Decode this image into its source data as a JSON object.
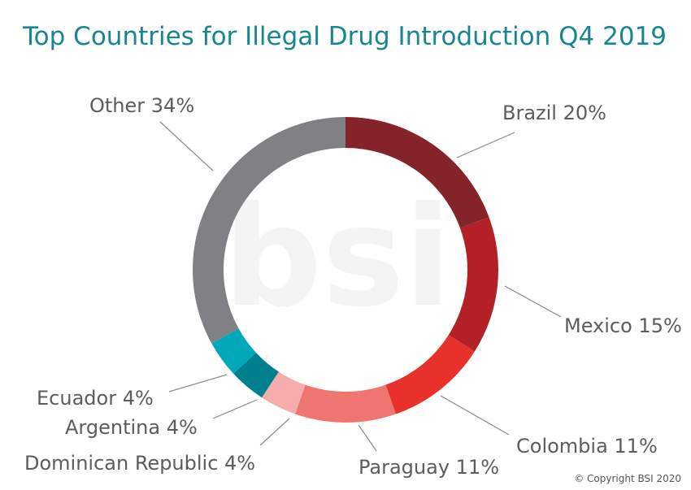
{
  "watermark": "bsi",
  "copyright": "© Copyright BSI 2020",
  "chart_data": {
    "type": "pie",
    "donut": true,
    "title": "Top Countries for Illegal Drug Introduction Q4 2019",
    "slices": [
      {
        "label": "Brazil 20%",
        "value": 20,
        "color": "#84232a"
      },
      {
        "label": "Mexico 15%",
        "value": 15,
        "color": "#b32028"
      },
      {
        "label": "Colombia 11%",
        "value": 11,
        "color": "#e8312b"
      },
      {
        "label": "Paraguay 11%",
        "value": 11,
        "color": "#ef7570"
      },
      {
        "label": "Dominican Republic 4%",
        "value": 4,
        "color": "#f7acad"
      },
      {
        "label": "Argentina 4%",
        "value": 4,
        "color": "#007f8c"
      },
      {
        "label": "Ecuador 4%",
        "value": 4,
        "color": "#00a8b8"
      },
      {
        "label": "Other 34%",
        "value": 34,
        "color": "#808184"
      }
    ]
  }
}
